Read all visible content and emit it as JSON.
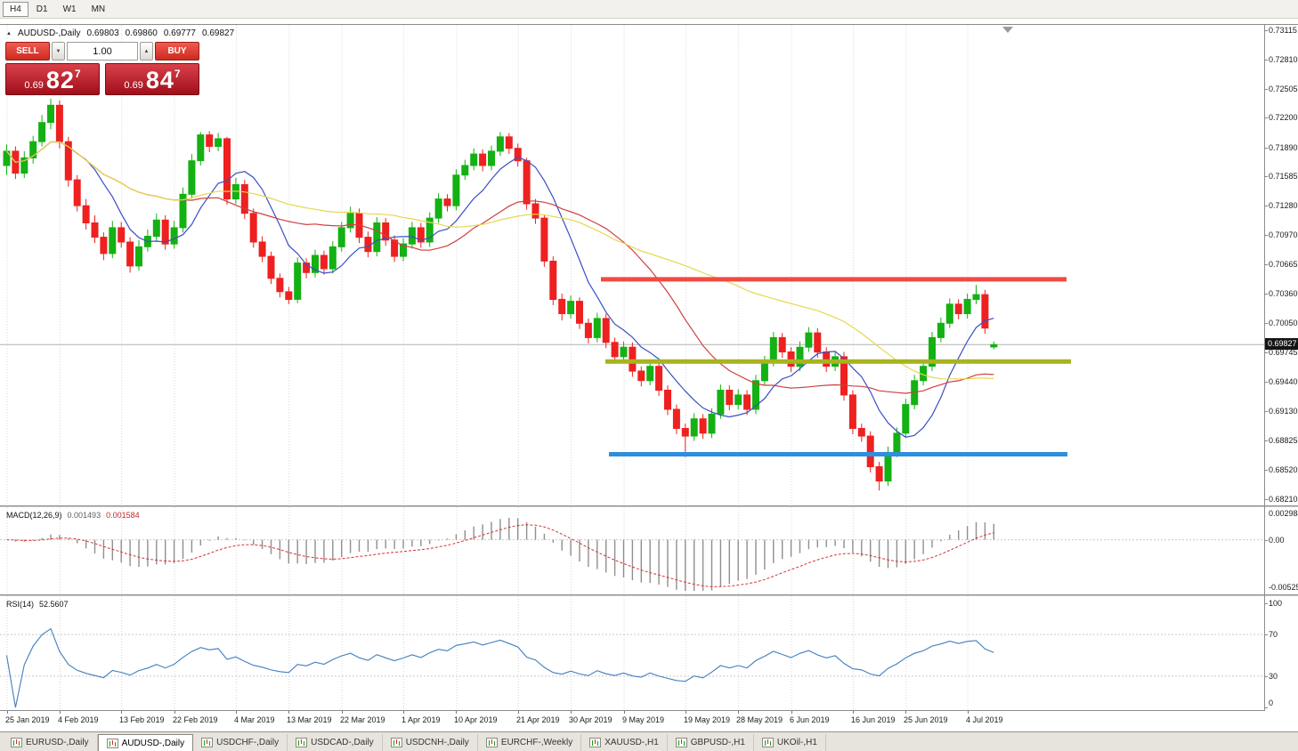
{
  "toolbar": {
    "timeframes": [
      {
        "label": "H4",
        "active": true
      },
      {
        "label": "D1",
        "active": false
      },
      {
        "label": "W1",
        "active": false
      },
      {
        "label": "MN",
        "active": false
      }
    ]
  },
  "header": {
    "symbol": "AUDUSD-,Daily",
    "open": "0.69803",
    "high": "0.69860",
    "low": "0.69777",
    "close": "0.69827"
  },
  "trade_panel": {
    "sell_label": "SELL",
    "buy_label": "BUY",
    "volume": "1.00",
    "bid": {
      "small": "0.69",
      "big": "82",
      "sup": "7"
    },
    "ask": {
      "small": "0.69",
      "big": "84",
      "sup": "7"
    }
  },
  "icons": {
    "panel_toggle": "▲",
    "spinner_down": "▼",
    "spinner_up": "▲"
  },
  "price_axis": {
    "current": "0.69827",
    "ticks": [
      "0.73115",
      "0.72810",
      "0.72505",
      "0.72200",
      "0.71890",
      "0.71585",
      "0.71280",
      "0.70970",
      "0.70665",
      "0.70360",
      "0.70050",
      "0.69745",
      "0.69440",
      "0.69130",
      "0.68825",
      "0.68520",
      "0.68210"
    ]
  },
  "time_axis": {
    "labels": [
      "25 Jan 2019",
      "4 Feb 2019",
      "13 Feb 2019",
      "22 Feb 2019",
      "4 Mar 2019",
      "13 Mar 2019",
      "22 Mar 2019",
      "1 Apr 2019",
      "10 Apr 2019",
      "21 Apr 2019",
      "30 Apr 2019",
      "9 May 2019",
      "19 May 2019",
      "28 May 2019",
      "6 Jun 2019",
      "16 Jun 2019",
      "25 Jun 2019",
      "4 Jul 2019"
    ],
    "indices": [
      0,
      6,
      13,
      19,
      26,
      32,
      38,
      45,
      51,
      58,
      64,
      70,
      77,
      83,
      89,
      96,
      102,
      109
    ]
  },
  "macd_panel": {
    "label": "MACD(12,26,9)",
    "value_main": "0.001493",
    "value_signal": "0.001584",
    "axis_top": "0.002984",
    "axis_zero": "0.00",
    "axis_bottom": "-0.005250"
  },
  "rsi_panel": {
    "label": "RSI(14)",
    "value": "52.5607",
    "axis": [
      "100",
      "70",
      "30",
      "0"
    ],
    "axis_values": [
      100,
      70,
      30,
      0
    ]
  },
  "tabs": [
    {
      "label": "EURUSD-,Daily",
      "active": false
    },
    {
      "label": "AUDUSD-,Daily",
      "active": true
    },
    {
      "label": "USDCHF-,Daily",
      "active": false
    },
    {
      "label": "USDCAD-,Daily",
      "active": false
    },
    {
      "label": "USDCNH-,Daily",
      "active": false
    },
    {
      "label": "EURCHF-,Weekly",
      "active": false
    },
    {
      "label": "XAUUSD-,H1",
      "active": false
    },
    {
      "label": "GBPUSD-,H1",
      "active": false
    },
    {
      "label": "UKOil-,H1",
      "active": false
    }
  ],
  "chart_data": {
    "type": "candlestick",
    "symbol": "AUDUSD",
    "timeframe": "Daily",
    "y_axis": {
      "max": 0.73115,
      "min": 0.6821
    },
    "current_price": 0.69827,
    "colors": {
      "up": "#13b113",
      "down": "#ee2020",
      "ma_fast": "#3a4fc4",
      "ma_mid": "#cf4040",
      "ma_slow": "#e6d74f",
      "hline_red": "#f04b42",
      "hline_olive": "#a6b41f",
      "hline_blue": "#2f8ede",
      "macd_hist": "#8f8f8f",
      "macd_signal": "#d93030",
      "rsi_line": "#3f7fbf",
      "grid": "#d9d9d9",
      "price_line": "#b4b4b4"
    },
    "moving_averages": [
      {
        "name": "fast",
        "period": 8
      },
      {
        "name": "mid",
        "period": 21
      },
      {
        "name": "slow",
        "period": 45
      }
    ],
    "hlines": [
      {
        "name": "resistance",
        "price": 0.7051,
        "x1": 0.475,
        "x2": 0.843,
        "color_key": "hline_red"
      },
      {
        "name": "pivot",
        "price": 0.6965,
        "x1": 0.479,
        "x2": 0.847,
        "color_key": "hline_olive"
      },
      {
        "name": "support",
        "price": 0.6868,
        "x1": 0.482,
        "x2": 0.845,
        "color_key": "hline_blue"
      }
    ],
    "macd": {
      "fast": 12,
      "slow": 26,
      "signal": 9,
      "scale_max": 0.002984,
      "scale_min": -0.00525
    },
    "rsi": {
      "period": 14,
      "levels": [
        70,
        30
      ]
    },
    "candles": [
      [
        0.717,
        0.7192,
        0.716,
        0.7185
      ],
      [
        0.7185,
        0.719,
        0.7156,
        0.7162
      ],
      [
        0.7162,
        0.7185,
        0.7157,
        0.7178
      ],
      [
        0.7178,
        0.7201,
        0.7172,
        0.7195
      ],
      [
        0.7195,
        0.7223,
        0.719,
        0.7215
      ],
      [
        0.7215,
        0.724,
        0.7208,
        0.7233
      ],
      [
        0.7233,
        0.7238,
        0.7188,
        0.7195
      ],
      [
        0.7195,
        0.72,
        0.7148,
        0.7155
      ],
      [
        0.7155,
        0.716,
        0.7122,
        0.7128
      ],
      [
        0.7128,
        0.7135,
        0.7103,
        0.711
      ],
      [
        0.711,
        0.7118,
        0.7089,
        0.7095
      ],
      [
        0.7095,
        0.71,
        0.7071,
        0.7078
      ],
      [
        0.7078,
        0.7112,
        0.7073,
        0.7105
      ],
      [
        0.7105,
        0.7111,
        0.7084,
        0.709
      ],
      [
        0.709,
        0.7095,
        0.7058,
        0.7065
      ],
      [
        0.7065,
        0.7092,
        0.706,
        0.7085
      ],
      [
        0.7085,
        0.7103,
        0.708,
        0.7096
      ],
      [
        0.7096,
        0.712,
        0.7091,
        0.7113
      ],
      [
        0.7113,
        0.7118,
        0.7082,
        0.7088
      ],
      [
        0.7088,
        0.7112,
        0.7083,
        0.7105
      ],
      [
        0.7105,
        0.7147,
        0.71,
        0.714
      ],
      [
        0.714,
        0.7182,
        0.7135,
        0.7175
      ],
      [
        0.7175,
        0.7205,
        0.717,
        0.7202
      ],
      [
        0.7202,
        0.7206,
        0.7184,
        0.719
      ],
      [
        0.719,
        0.7204,
        0.7185,
        0.7198
      ],
      [
        0.7198,
        0.72,
        0.7129,
        0.7135
      ],
      [
        0.7135,
        0.7157,
        0.713,
        0.715
      ],
      [
        0.715,
        0.7155,
        0.7114,
        0.712
      ],
      [
        0.712,
        0.7125,
        0.7084,
        0.709
      ],
      [
        0.709,
        0.7096,
        0.7069,
        0.7075
      ],
      [
        0.7075,
        0.708,
        0.7046,
        0.7052
      ],
      [
        0.7052,
        0.7057,
        0.7032,
        0.7038
      ],
      [
        0.7038,
        0.7043,
        0.7025,
        0.703
      ],
      [
        0.703,
        0.7074,
        0.7026,
        0.7068
      ],
      [
        0.7068,
        0.7073,
        0.7052,
        0.7058
      ],
      [
        0.7058,
        0.7082,
        0.7053,
        0.7076
      ],
      [
        0.7076,
        0.7081,
        0.7056,
        0.7062
      ],
      [
        0.7062,
        0.7091,
        0.7057,
        0.7085
      ],
      [
        0.7085,
        0.7111,
        0.708,
        0.7105
      ],
      [
        0.7105,
        0.7127,
        0.71,
        0.712
      ],
      [
        0.712,
        0.7125,
        0.7089,
        0.7095
      ],
      [
        0.7095,
        0.7101,
        0.7074,
        0.708
      ],
      [
        0.708,
        0.7116,
        0.7075,
        0.711
      ],
      [
        0.711,
        0.7115,
        0.7086,
        0.7092
      ],
      [
        0.7092,
        0.7097,
        0.7069,
        0.7075
      ],
      [
        0.7075,
        0.7094,
        0.707,
        0.7088
      ],
      [
        0.7088,
        0.7111,
        0.7083,
        0.7105
      ],
      [
        0.7105,
        0.711,
        0.7084,
        0.709
      ],
      [
        0.709,
        0.7121,
        0.7085,
        0.7115
      ],
      [
        0.7115,
        0.7141,
        0.711,
        0.7135
      ],
      [
        0.7135,
        0.714,
        0.7122,
        0.7128
      ],
      [
        0.7128,
        0.7166,
        0.7123,
        0.716
      ],
      [
        0.716,
        0.7176,
        0.7155,
        0.717
      ],
      [
        0.717,
        0.7188,
        0.7165,
        0.7182
      ],
      [
        0.7182,
        0.7187,
        0.7164,
        0.717
      ],
      [
        0.717,
        0.7191,
        0.7165,
        0.7185
      ],
      [
        0.7185,
        0.7205,
        0.718,
        0.72
      ],
      [
        0.72,
        0.7204,
        0.7182,
        0.7188
      ],
      [
        0.7188,
        0.7193,
        0.7169,
        0.7175
      ],
      [
        0.7175,
        0.7178,
        0.7124,
        0.713
      ],
      [
        0.713,
        0.7135,
        0.7109,
        0.7115
      ],
      [
        0.7115,
        0.7118,
        0.7064,
        0.707
      ],
      [
        0.707,
        0.7075,
        0.7024,
        0.703
      ],
      [
        0.703,
        0.7036,
        0.7008,
        0.7015
      ],
      [
        0.7015,
        0.7034,
        0.701,
        0.7028
      ],
      [
        0.7028,
        0.7032,
        0.6999,
        0.7005
      ],
      [
        0.7005,
        0.701,
        0.6984,
        0.699
      ],
      [
        0.699,
        0.7016,
        0.6985,
        0.701
      ],
      [
        0.701,
        0.7015,
        0.6979,
        0.6985
      ],
      [
        0.6985,
        0.699,
        0.6964,
        0.697
      ],
      [
        0.697,
        0.6986,
        0.6965,
        0.698
      ],
      [
        0.698,
        0.6985,
        0.6949,
        0.6955
      ],
      [
        0.6955,
        0.696,
        0.6939,
        0.6945
      ],
      [
        0.6945,
        0.6966,
        0.694,
        0.696
      ],
      [
        0.696,
        0.6965,
        0.6929,
        0.6935
      ],
      [
        0.6935,
        0.694,
        0.6909,
        0.6915
      ],
      [
        0.6915,
        0.692,
        0.6889,
        0.6895
      ],
      [
        0.6895,
        0.69,
        0.6865,
        0.6887
      ],
      [
        0.6887,
        0.6911,
        0.6882,
        0.6905
      ],
      [
        0.6905,
        0.691,
        0.6884,
        0.689
      ],
      [
        0.689,
        0.6916,
        0.6885,
        0.691
      ],
      [
        0.691,
        0.6941,
        0.6905,
        0.6935
      ],
      [
        0.6935,
        0.694,
        0.6914,
        0.692
      ],
      [
        0.692,
        0.6936,
        0.6915,
        0.693
      ],
      [
        0.693,
        0.6935,
        0.6909,
        0.6915
      ],
      [
        0.6915,
        0.6951,
        0.691,
        0.6945
      ],
      [
        0.6945,
        0.6971,
        0.694,
        0.6965
      ],
      [
        0.6965,
        0.6996,
        0.696,
        0.699
      ],
      [
        0.699,
        0.6995,
        0.6969,
        0.6975
      ],
      [
        0.6975,
        0.698,
        0.6954,
        0.696
      ],
      [
        0.696,
        0.6986,
        0.6955,
        0.698
      ],
      [
        0.698,
        0.7001,
        0.6975,
        0.6995
      ],
      [
        0.6995,
        0.7,
        0.6969,
        0.6975
      ],
      [
        0.6975,
        0.698,
        0.6954,
        0.696
      ],
      [
        0.696,
        0.6976,
        0.6955,
        0.697
      ],
      [
        0.697,
        0.6975,
        0.6924,
        0.693
      ],
      [
        0.693,
        0.6935,
        0.6889,
        0.6895
      ],
      [
        0.6895,
        0.69,
        0.6881,
        0.6887
      ],
      [
        0.6887,
        0.6892,
        0.6849,
        0.6855
      ],
      [
        0.6855,
        0.686,
        0.683,
        0.684
      ],
      [
        0.684,
        0.6876,
        0.6835,
        0.687
      ],
      [
        0.687,
        0.6896,
        0.6865,
        0.689
      ],
      [
        0.689,
        0.6926,
        0.6885,
        0.692
      ],
      [
        0.692,
        0.6951,
        0.6915,
        0.6945
      ],
      [
        0.6945,
        0.6966,
        0.694,
        0.696
      ],
      [
        0.696,
        0.6996,
        0.6955,
        0.699
      ],
      [
        0.699,
        0.7011,
        0.6985,
        0.7005
      ],
      [
        0.7005,
        0.7031,
        0.7,
        0.7025
      ],
      [
        0.7025,
        0.703,
        0.7009,
        0.7015
      ],
      [
        0.7015,
        0.7036,
        0.701,
        0.703
      ],
      [
        0.703,
        0.7045,
        0.7025,
        0.7035
      ],
      [
        0.7035,
        0.704,
        0.6994,
        0.7
      ],
      [
        0.69803,
        0.6986,
        0.69777,
        0.69827
      ]
    ]
  }
}
